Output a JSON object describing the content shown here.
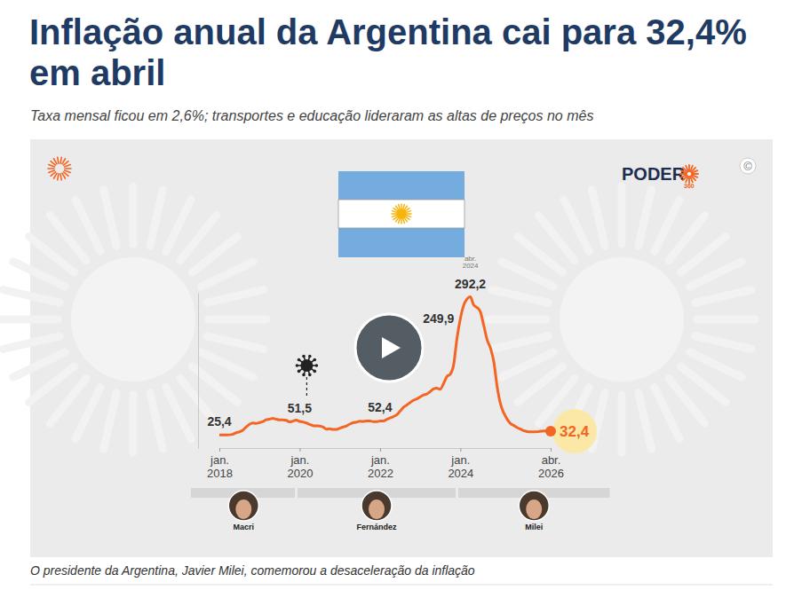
{
  "chart_data": {
    "type": "line",
    "title": "Inflação anual da Argentina cai para 32,4% em abril",
    "subtitle": "Taxa mensal ficou em 2,6%; transportes e educação lideraram as altas de preços no mês",
    "caption": "O presidente da Argentina, Javier Milei, comemorou a desaceleração da inflação",
    "brand": {
      "name": "PODER",
      "sub": "360"
    },
    "copyright": "©",
    "x": [
      "2018-01",
      "2018-02",
      "2018-03",
      "2018-04",
      "2018-05",
      "2018-06",
      "2018-07",
      "2018-08",
      "2018-09",
      "2018-10",
      "2018-11",
      "2018-12",
      "2019-01",
      "2019-02",
      "2019-03",
      "2019-04",
      "2019-05",
      "2019-06",
      "2019-07",
      "2019-08",
      "2019-09",
      "2019-10",
      "2019-11",
      "2019-12",
      "2020-01",
      "2020-02",
      "2020-03",
      "2020-04",
      "2020-05",
      "2020-06",
      "2020-07",
      "2020-08",
      "2020-09",
      "2020-10",
      "2020-11",
      "2020-12",
      "2021-01",
      "2021-02",
      "2021-03",
      "2021-04",
      "2021-05",
      "2021-06",
      "2021-07",
      "2021-08",
      "2021-09",
      "2021-10",
      "2021-11",
      "2021-12",
      "2022-01",
      "2022-02",
      "2022-03",
      "2022-04",
      "2022-05",
      "2022-06",
      "2022-07",
      "2022-08",
      "2022-09",
      "2022-10",
      "2022-11",
      "2022-12",
      "2023-01",
      "2023-02",
      "2023-03",
      "2023-04",
      "2023-05",
      "2023-06",
      "2023-07",
      "2023-08",
      "2023-09",
      "2023-10",
      "2023-11",
      "2023-12",
      "2024-01",
      "2024-02",
      "2024-03",
      "2024-04",
      "2024-05",
      "2024-06",
      "2024-07",
      "2024-08",
      "2024-09",
      "2024-10",
      "2024-11",
      "2024-12",
      "2025-01",
      "2025-02",
      "2025-03",
      "2025-04",
      "2025-05",
      "2025-06",
      "2025-07",
      "2025-08",
      "2025-09",
      "2025-10",
      "2025-11",
      "2025-12",
      "2026-01",
      "2026-02",
      "2026-03",
      "2026-04"
    ],
    "series": [
      {
        "color": "#f26522",
        "values": [
          25.4,
          25.4,
          25.4,
          25.5,
          26.3,
          29.5,
          31.2,
          34.4,
          40.5,
          45.9,
          48.5,
          47.6,
          49.3,
          51.3,
          54.7,
          55.8,
          57.3,
          55.8,
          54.4,
          54.5,
          53.5,
          50.5,
          52.1,
          53.8,
          51.5,
          50.3,
          48.4,
          45.6,
          43.4,
          42.8,
          42.4,
          40.7,
          36.6,
          37.2,
          35.8,
          36.1,
          38.5,
          40.7,
          42.6,
          46.3,
          48.8,
          50.2,
          51.8,
          51.4,
          52.5,
          52.1,
          51.2,
          50.9,
          52.4,
          52.3,
          55.1,
          58.0,
          60.7,
          64.0,
          71.0,
          78.5,
          83.0,
          88.0,
          92.4,
          94.8,
          98.8,
          102.5,
          104.3,
          108.8,
          114.2,
          115.6,
          113.4,
          124.4,
          138.3,
          142.7,
          160.9,
          211.4,
          249.9,
          276.2,
          287.9,
          292.2,
          276.4,
          271.5,
          263.4,
          236.7,
          209.0,
          193.0,
          166.0,
          117.8,
          84.5,
          66.9,
          55.9,
          47.3,
          43.5,
          39.4,
          36.6,
          33.6,
          31.8,
          31.3,
          31.4,
          31.5,
          32.4,
          33.1,
          32.8,
          32.4
        ],
        "value_labels": [
          "25,4",
          null,
          null,
          null,
          null,
          null,
          null,
          null,
          null,
          null,
          null,
          null,
          null,
          null,
          null,
          null,
          null,
          null,
          null,
          null,
          null,
          null,
          null,
          null,
          "51,5",
          null,
          null,
          null,
          null,
          null,
          null,
          null,
          null,
          null,
          null,
          null,
          null,
          null,
          null,
          null,
          null,
          null,
          null,
          null,
          null,
          null,
          null,
          null,
          "52,4",
          null,
          null,
          null,
          null,
          null,
          null,
          null,
          null,
          null,
          null,
          null,
          null,
          null,
          null,
          null,
          null,
          null,
          null,
          null,
          null,
          null,
          null,
          null,
          "249,9",
          null,
          null,
          "292,2",
          null,
          null,
          null,
          null,
          null,
          null,
          null,
          null,
          null,
          null,
          null,
          null,
          null,
          null,
          null,
          null,
          null,
          null,
          null,
          null,
          null,
          null,
          null,
          "32,4"
        ]
      }
    ],
    "annotations": [
      {
        "x": "2024-04",
        "text": "abr. 2024"
      }
    ],
    "presidents": [
      {
        "name": "Macri",
        "start": "2015-12"
      },
      {
        "name": "Fernández",
        "start": "2019-12"
      },
      {
        "name": "Milei",
        "start": "2023-12"
      }
    ],
    "xlim": [
      "2018-01",
      "2026-04"
    ],
    "xticks": [
      {
        "value": "2018-01",
        "label": "jan. 2018"
      },
      {
        "value": "2020-01",
        "label": "jan. 2020"
      },
      {
        "value": "2022-01",
        "label": "jan. 2022"
      },
      {
        "value": "2024-01",
        "label": "jan. 2024"
      },
      {
        "value": "2026-04",
        "label": "abr. 2026"
      }
    ],
    "ylim": [
      0,
      300
    ],
    "yticks": [],
    "tick_labels": "x",
    "grid": false,
    "data_labels": true
  }
}
